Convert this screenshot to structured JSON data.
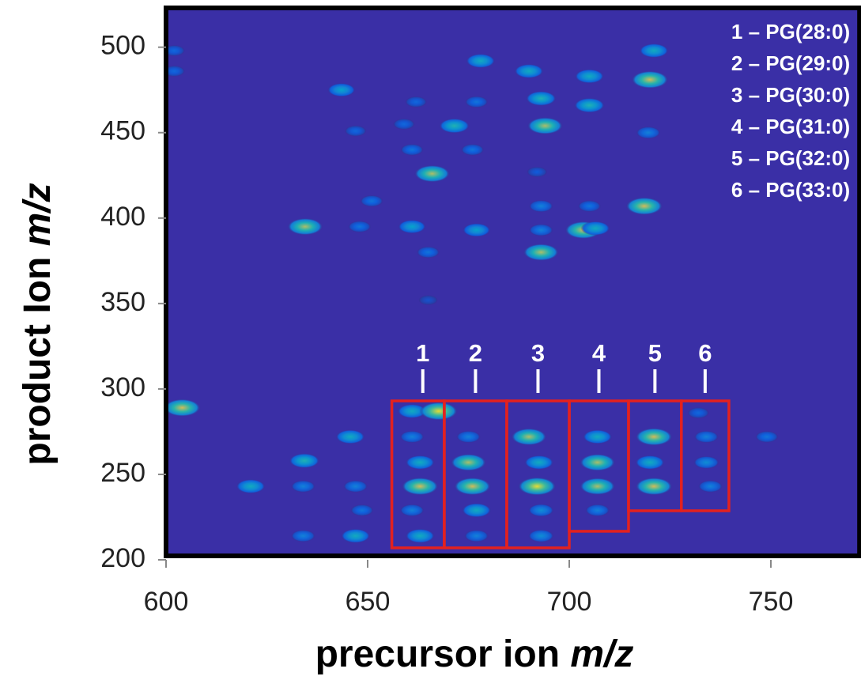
{
  "chart_data": {
    "type": "heatmap",
    "xlabel": [
      "precursor ion",
      "m/z"
    ],
    "ylabel": [
      "product Ion",
      "m/z"
    ],
    "xlim": [
      600,
      772
    ],
    "ylim": [
      200,
      523
    ],
    "xticks": [
      600,
      650,
      700,
      750
    ],
    "yticks": [
      200,
      250,
      300,
      350,
      400,
      450,
      500
    ],
    "background": "#3a2fa6",
    "box_color": "#e3211f",
    "series": [
      {
        "x": [
          602,
          602,
          678,
          690,
          705,
          721,
          720,
          643.5,
          662,
          677,
          693,
          705,
          671.5,
          694,
          659,
          647,
          719.6,
          661,
          676,
          666,
          692,
          651,
          693,
          705,
          718.6,
          634.5,
          648,
          661,
          677,
          693,
          703.5,
          706.5,
          693,
          665,
          665,
          604,
          645.7,
          634.3,
          621,
          634,
          647,
          648.6,
          647,
          634,
          661,
          667.6,
          661,
          663,
          663,
          661,
          663,
          675,
          675,
          676,
          677,
          677,
          690,
          692.5,
          692,
          693,
          693,
          707,
          707,
          707,
          707,
          721,
          720,
          721,
          732,
          734,
          734,
          735,
          749
        ],
        "values": [
          498,
          486,
          492,
          486,
          483,
          498,
          481,
          475,
          468,
          468,
          470,
          466,
          454,
          454,
          455,
          451,
          450,
          440,
          440,
          426,
          427,
          410,
          407,
          407,
          407,
          395,
          395,
          395,
          393,
          393,
          393,
          394,
          380,
          380,
          352,
          289,
          272,
          258,
          243,
          243,
          243,
          229,
          214,
          214,
          287,
          287,
          272,
          257,
          243,
          229,
          214,
          272,
          257,
          243,
          229,
          214,
          272,
          257,
          243,
          229,
          214,
          272,
          257,
          243,
          229,
          272,
          257,
          243,
          286,
          272,
          257,
          243,
          272
        ],
        "intensity": [
          0.3,
          0.3,
          0.6,
          0.6,
          0.6,
          0.6,
          0.9,
          0.55,
          0.3,
          0.35,
          0.65,
          0.65,
          0.65,
          0.85,
          0.3,
          0.3,
          0.4,
          0.35,
          0.35,
          0.85,
          0.25,
          0.35,
          0.4,
          0.35,
          0.9,
          0.85,
          0.35,
          0.55,
          0.55,
          0.4,
          0.9,
          0.6,
          0.85,
          0.35,
          0.2,
          0.9,
          0.6,
          0.65,
          0.6,
          0.4,
          0.4,
          0.35,
          0.6,
          0.4,
          0.6,
          0.95,
          0.4,
          0.6,
          0.9,
          0.4,
          0.6,
          0.4,
          0.85,
          0.9,
          0.6,
          0.4,
          0.85,
          0.6,
          0.95,
          0.45,
          0.45,
          0.6,
          0.85,
          0.85,
          0.4,
          0.9,
          0.6,
          0.9,
          0.3,
          0.4,
          0.45,
          0.4,
          0.35
        ]
      }
    ],
    "boxes": [
      {
        "label": "1",
        "x": [
          656,
          669
        ],
        "y": [
          207,
          293
        ]
      },
      {
        "label": "2",
        "x": [
          669,
          684.5
        ],
        "y": [
          207,
          293
        ]
      },
      {
        "label": "3",
        "x": [
          684.5,
          700
        ],
        "y": [
          207,
          293
        ]
      },
      {
        "label": "4",
        "x": [
          700,
          714.7
        ],
        "y": [
          216.7,
          293
        ]
      },
      {
        "label": "5",
        "x": [
          714.7,
          727.8
        ],
        "y": [
          228.7,
          293
        ]
      },
      {
        "label": "6",
        "x": [
          727.8,
          739.6
        ],
        "y": [
          228.7,
          293
        ]
      }
    ],
    "legend_text": [
      "1 – PG(28:0)",
      "2 – PG(29:0)",
      "3 – PG(30:0)",
      "4 – PG(31:0)",
      "5 – PG(32:0)",
      "6 – PG(33:0)"
    ]
  }
}
